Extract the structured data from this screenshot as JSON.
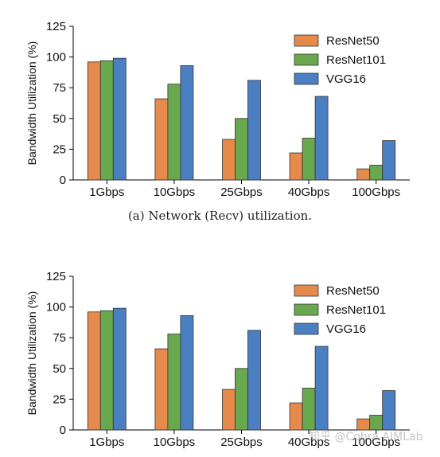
{
  "caption_a": "(a) Network (Recv) utilization.",
  "watermark": "知乎 @Cobra AIMLab",
  "colors": {
    "ResNet50": "#e58a4b",
    "ResNet101": "#6aa84f",
    "VGG16": "#4a7fc1"
  },
  "chart_data": [
    {
      "type": "bar",
      "categories": [
        "1Gbps",
        "10Gbps",
        "25Gbps",
        "40Gbps",
        "100Gbps"
      ],
      "series": [
        {
          "name": "ResNet50",
          "values": [
            96,
            66,
            33,
            22,
            9
          ]
        },
        {
          "name": "ResNet101",
          "values": [
            97,
            78,
            50,
            34,
            12
          ]
        },
        {
          "name": "VGG16",
          "values": [
            99,
            93,
            81,
            68,
            32
          ]
        }
      ],
      "title": "",
      "xlabel": "",
      "ylabel": "Bandwidth Utilization (%)",
      "ylim": [
        0,
        125
      ],
      "yticks": [
        0,
        25,
        50,
        75,
        100,
        125
      ],
      "legend": "top-right",
      "grid": false
    },
    {
      "type": "bar",
      "categories": [
        "1Gbps",
        "10Gbps",
        "25Gbps",
        "40Gbps",
        "100Gbps"
      ],
      "series": [
        {
          "name": "ResNet50",
          "values": [
            96,
            66,
            33,
            22,
            9
          ]
        },
        {
          "name": "ResNet101",
          "values": [
            97,
            78,
            50,
            34,
            12
          ]
        },
        {
          "name": "VGG16",
          "values": [
            99,
            93,
            81,
            68,
            32
          ]
        }
      ],
      "title": "",
      "xlabel": "",
      "ylabel": "Bandwidth Utilization (%)",
      "ylim": [
        0,
        125
      ],
      "yticks": [
        0,
        25,
        50,
        75,
        100,
        125
      ],
      "legend": "top-right",
      "grid": false
    }
  ]
}
